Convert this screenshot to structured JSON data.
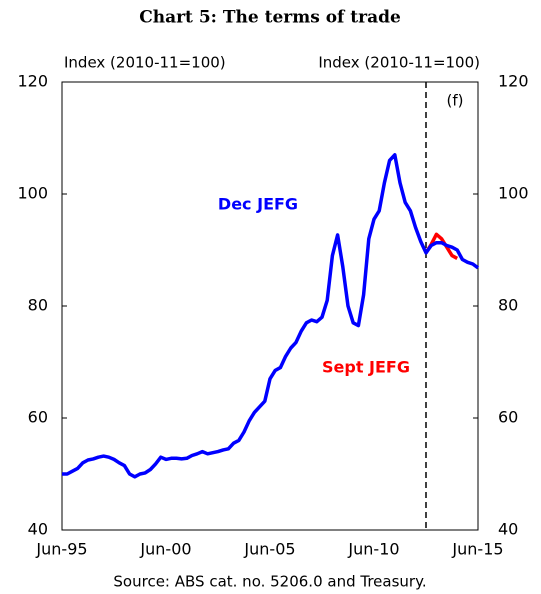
{
  "chart_data": {
    "type": "line",
    "title": "Chart 5: The terms of trade",
    "y_label": "Index (2010-11=100)",
    "y2_label": "Index (2010-11=100)",
    "annotation": "(f)",
    "source": "Source: ABS cat. no. 5206.0 and Treasury.",
    "categories": [
      "Jun-95",
      null,
      null,
      null,
      null,
      null,
      null,
      null,
      null,
      null,
      null,
      null,
      null,
      null,
      null,
      null,
      null,
      null,
      null,
      null,
      "Jun-00",
      null,
      null,
      null,
      null,
      null,
      null,
      null,
      null,
      null,
      null,
      null,
      null,
      null,
      null,
      null,
      null,
      null,
      null,
      null,
      "Jun-05",
      null,
      null,
      null,
      null,
      null,
      null,
      null,
      null,
      null,
      null,
      null,
      null,
      null,
      null,
      null,
      null,
      null,
      null,
      null,
      "Jun-10",
      null,
      null,
      null,
      null,
      null,
      null,
      null,
      null,
      null,
      null,
      null,
      null,
      null,
      null,
      null,
      null,
      null,
      null,
      null,
      "Jun-15"
    ],
    "series": [
      {
        "name": "Dec JEFG",
        "color": "#0000ff",
        "values": [
          50,
          50,
          50.5,
          51,
          52,
          52.5,
          52.7,
          53,
          53.2,
          53,
          52.6,
          52,
          51.5,
          50,
          49.5,
          50,
          50.2,
          50.8,
          51.8,
          53,
          52.6,
          52.8,
          52.8,
          52.7,
          52.8,
          53.3,
          53.6,
          54,
          53.6,
          53.8,
          54,
          54.3,
          54.5,
          55.5,
          56,
          57.5,
          59.5,
          61,
          62,
          63,
          67,
          68.5,
          69,
          71,
          72.5,
          73.5,
          75.5,
          77,
          77.5,
          77.2,
          78,
          81,
          89,
          92.7,
          87,
          80,
          77,
          76.5,
          82,
          92,
          95.5,
          97,
          102,
          106,
          107,
          102,
          98.5,
          97,
          94,
          91.5,
          89.5,
          90.8,
          91.3,
          91.3,
          90.8,
          90.5,
          90,
          88.3,
          87.8,
          87.5,
          86.8
        ]
      },
      {
        "name": "Sept JEFG",
        "color": "#ff0000",
        "values": [
          null,
          null,
          null,
          null,
          null,
          null,
          null,
          null,
          null,
          null,
          null,
          null,
          null,
          null,
          null,
          null,
          null,
          null,
          null,
          null,
          null,
          null,
          null,
          null,
          null,
          null,
          null,
          null,
          null,
          null,
          null,
          null,
          null,
          null,
          null,
          null,
          null,
          null,
          null,
          null,
          null,
          null,
          null,
          null,
          null,
          null,
          null,
          null,
          null,
          null,
          null,
          null,
          null,
          null,
          null,
          null,
          null,
          null,
          null,
          null,
          null,
          null,
          null,
          null,
          null,
          null,
          null,
          null,
          null,
          null,
          89.5,
          91,
          92.8,
          92,
          90.5,
          89,
          88.5,
          null,
          null,
          null,
          null
        ]
      }
    ],
    "ylim": [
      40,
      120
    ],
    "yticks": [
      40,
      60,
      80,
      100,
      120
    ],
    "y2lim": [
      40,
      120
    ],
    "y2ticks": [
      40,
      60,
      80,
      100,
      120
    ]
  }
}
